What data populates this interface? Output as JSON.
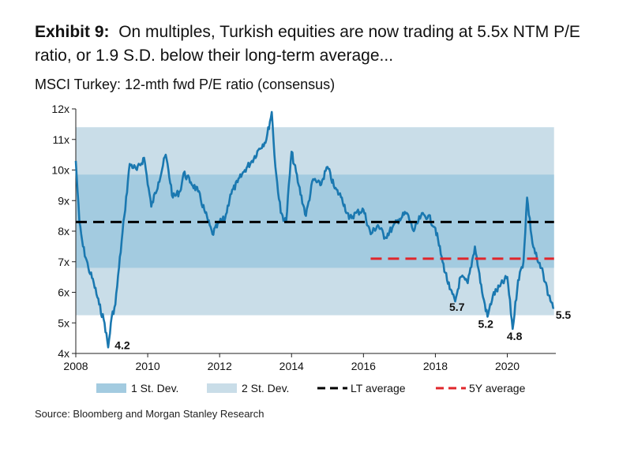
{
  "title_lead": "Exhibit 9:",
  "title_text": "On multiples, Turkish equities are now trading at 5.5x NTM P/E ratio, or 1.9 S.D. below their long-term average...",
  "source": "Source: Bloomberg and Morgan Stanley Research",
  "colors": {
    "series": "#1a78b0",
    "band1": "#a3cbe0",
    "band2": "#c9dde8",
    "lt_avg": "#000000",
    "avg5y": "#e0262b"
  },
  "chart_data": {
    "type": "line",
    "title": "MSCI Turkey: 12-mth fwd P/E ratio (consensus)",
    "xlim": [
      2008,
      2021.35
    ],
    "ylim": [
      4,
      12
    ],
    "x_ticks": [
      "2008",
      "2010",
      "2012",
      "2014",
      "2016",
      "2018",
      "2020"
    ],
    "y_ticks": [
      "4x",
      "5x",
      "6x",
      "7x",
      "8x",
      "9x",
      "10x",
      "11x",
      "12x"
    ],
    "bands": [
      {
        "name": "1 St. Dev.",
        "low": 6.8,
        "high": 9.85
      },
      {
        "name": "2 St. Dev.",
        "low": 5.25,
        "high": 11.4
      }
    ],
    "lines": [
      {
        "name": "LT average",
        "value": 8.3,
        "x_start": 2008,
        "x_end": 2021.3
      },
      {
        "name": "5Y average",
        "value": 7.1,
        "x_start": 2016.2,
        "x_end": 2021.3
      }
    ],
    "legend": [
      "1 St. Dev.",
      "2 St. Dev.",
      "LT average",
      "5Y average"
    ],
    "annotations": [
      {
        "label": "4.2",
        "x": 2008.9,
        "y": 4.2
      },
      {
        "label": "5.7",
        "x": 2018.6,
        "y": 5.7
      },
      {
        "label": "5.2",
        "x": 2019.4,
        "y": 5.2
      },
      {
        "label": "4.8",
        "x": 2020.2,
        "y": 4.8
      },
      {
        "label": "5.5",
        "x": 2021.25,
        "y": 5.5
      }
    ],
    "series": [
      {
        "x": [
          2008.0,
          2008.1,
          2008.2,
          2008.35,
          2008.5,
          2008.65,
          2008.8,
          2008.9,
          2009.0,
          2009.1,
          2009.2,
          2009.35,
          2009.5,
          2009.7,
          2009.9,
          2010.1,
          2010.3,
          2010.5,
          2010.7,
          2010.9,
          2011.0,
          2011.2,
          2011.4,
          2011.6,
          2011.8,
          2012.0,
          2012.15,
          2012.3,
          2012.5,
          2012.7,
          2012.9,
          2013.1,
          2013.3,
          2013.45,
          2013.55,
          2013.7,
          2013.85,
          2014.0,
          2014.2,
          2014.4,
          2014.6,
          2014.8,
          2015.0,
          2015.2,
          2015.4,
          2015.6,
          2015.8,
          2016.0,
          2016.2,
          2016.4,
          2016.6,
          2016.8,
          2017.0,
          2017.2,
          2017.4,
          2017.6,
          2017.8,
          2018.0,
          2018.2,
          2018.4,
          2018.55,
          2018.7,
          2018.9,
          2019.1,
          2019.3,
          2019.45,
          2019.6,
          2019.8,
          2020.0,
          2020.15,
          2020.3,
          2020.45,
          2020.55,
          2020.7,
          2020.85,
          2021.0,
          2021.15,
          2021.3
        ],
        "y": [
          10.3,
          8.3,
          7.5,
          6.8,
          6.3,
          5.6,
          5.0,
          4.2,
          5.2,
          5.6,
          6.8,
          8.5,
          10.2,
          10.0,
          10.4,
          8.8,
          9.6,
          10.5,
          9.1,
          9.3,
          9.9,
          9.6,
          9.3,
          8.6,
          7.9,
          8.3,
          8.4,
          9.2,
          9.6,
          10.0,
          10.3,
          10.7,
          11.0,
          11.9,
          10.1,
          8.6,
          8.3,
          10.6,
          9.5,
          8.5,
          9.7,
          9.5,
          10.1,
          9.4,
          9.1,
          8.4,
          8.6,
          8.7,
          7.9,
          8.2,
          7.8,
          8.1,
          8.4,
          8.6,
          8.0,
          8.5,
          8.5,
          8.1,
          7.0,
          6.1,
          5.7,
          6.5,
          6.3,
          7.5,
          6.0,
          5.2,
          5.9,
          6.2,
          6.5,
          4.8,
          6.4,
          7.0,
          9.1,
          7.6,
          7.0,
          6.6,
          5.9,
          5.5
        ]
      }
    ]
  }
}
